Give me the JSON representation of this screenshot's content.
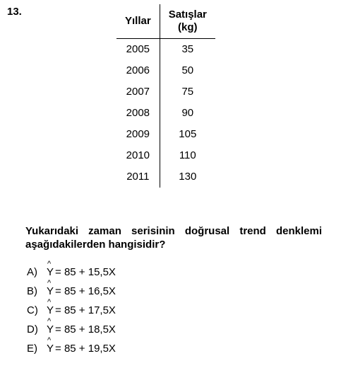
{
  "question_number": "13.",
  "table": {
    "headers": {
      "col1": "Yıllar",
      "col2_line1": "Satışlar",
      "col2_line2": "(kg)"
    },
    "rows": [
      {
        "year": "2005",
        "sales": "35"
      },
      {
        "year": "2006",
        "sales": "50"
      },
      {
        "year": "2007",
        "sales": "75"
      },
      {
        "year": "2008",
        "sales": "90"
      },
      {
        "year": "2009",
        "sales": "105"
      },
      {
        "year": "2010",
        "sales": "110"
      },
      {
        "year": "2011",
        "sales": "130"
      }
    ]
  },
  "question_text": "Yukarıdaki zaman serisinin doğrusal trend denklemi aşağıdakilerden hangisidir?",
  "yvar": "Y",
  "hat": "^",
  "options": [
    {
      "letter": "A)",
      "eq": " = 85 + 15,5X"
    },
    {
      "letter": "B)",
      "eq": " = 85 + 16,5X"
    },
    {
      "letter": "C)",
      "eq": " = 85 + 17,5X"
    },
    {
      "letter": "D)",
      "eq": " = 85 + 18,5X"
    },
    {
      "letter": "E)",
      "eq": " = 85 + 19,5X"
    }
  ],
  "style": {
    "background_color": "#ffffff",
    "text_color": "#000000",
    "border_color": "#000000",
    "font_family": "Arial",
    "qnum_fontsize": 15,
    "table_fontsize": 15,
    "question_fontsize": 15,
    "option_fontsize": 15
  }
}
